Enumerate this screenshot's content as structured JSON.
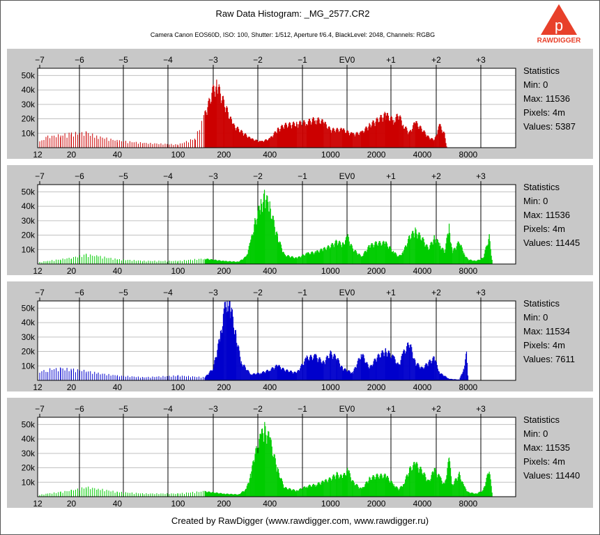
{
  "header": {
    "title": "Raw Data Histogram: _MG_2577.CR2",
    "subtitle": "Camera Canon EOS60D, ISO: 100, Shutter: 1/512, Aperture f/6.4, BlackLevel: 2048, Channels: RGBG"
  },
  "logo": {
    "text": "RAWDIGGER",
    "letter": "p",
    "icon": "rawdigger-logo-icon"
  },
  "footer": {
    "text": "Created by RawDigger (www.rawdigger.com, www.rawdigger.ru)"
  },
  "chart_data": [
    {
      "type": "area",
      "channel": "R",
      "color": "#cc0000",
      "ev_ticks": [
        "−7",
        "−6",
        "−5",
        "−4",
        "−3",
        "−2",
        "−1",
        "EV0",
        "+1",
        "+2",
        "+3"
      ],
      "x_ticks": [
        "12",
        "20",
        "40",
        "100",
        "200",
        "400",
        "1000",
        "2000",
        "4000",
        "8000"
      ],
      "y_ticks": [
        "10k",
        "20k",
        "30k",
        "40k",
        "50k"
      ],
      "ylim": [
        0,
        55000
      ],
      "xscale": "log",
      "points": [
        [
          12,
          3000
        ],
        [
          14,
          7000
        ],
        [
          17,
          8000
        ],
        [
          20,
          9000
        ],
        [
          25,
          9500
        ],
        [
          30,
          7000
        ],
        [
          40,
          4500
        ],
        [
          60,
          3000
        ],
        [
          100,
          2000
        ],
        [
          130,
          6000
        ],
        [
          150,
          22000
        ],
        [
          170,
          38000
        ],
        [
          180,
          42000
        ],
        [
          200,
          30000
        ],
        [
          230,
          15000
        ],
        [
          300,
          6000
        ],
        [
          350,
          4000
        ],
        [
          400,
          6000
        ],
        [
          450,
          12000
        ],
        [
          500,
          15000
        ],
        [
          600,
          16000
        ],
        [
          700,
          17000
        ],
        [
          800,
          19000
        ],
        [
          900,
          17000
        ],
        [
          1000,
          12000
        ],
        [
          1200,
          12000
        ],
        [
          1400,
          9000
        ],
        [
          1600,
          10000
        ],
        [
          1800,
          15000
        ],
        [
          2000,
          18000
        ],
        [
          2300,
          22000
        ],
        [
          2600,
          18000
        ],
        [
          2800,
          22000
        ],
        [
          3000,
          15000
        ],
        [
          3300,
          10000
        ],
        [
          3600,
          17000
        ],
        [
          4000,
          12000
        ],
        [
          4400,
          7000
        ],
        [
          4800,
          5000
        ],
        [
          5200,
          15000
        ],
        [
          5600,
          9000
        ],
        [
          5800,
          0
        ]
      ],
      "stats": {
        "heading": "Statistics",
        "min": "Min: 0",
        "max": "Max: 11536",
        "pixels": "Pixels: 4m",
        "values": "Values: 5387"
      }
    },
    {
      "type": "area",
      "channel": "G",
      "color": "#00cc00",
      "ev_ticks": [
        "−7",
        "−6",
        "−5",
        "−4",
        "−3",
        "−2",
        "−1",
        "EV0",
        "+1",
        "+2",
        "+3"
      ],
      "x_ticks": [
        "12",
        "20",
        "40",
        "100",
        "200",
        "400",
        "1000",
        "2000",
        "4000",
        "8000"
      ],
      "y_ticks": [
        "10k",
        "20k",
        "30k",
        "40k",
        "50k"
      ],
      "ylim": [
        0,
        55000
      ],
      "xscale": "log",
      "points": [
        [
          12,
          1000
        ],
        [
          14,
          2000
        ],
        [
          17,
          3000
        ],
        [
          20,
          4000
        ],
        [
          25,
          6000
        ],
        [
          30,
          5000
        ],
        [
          40,
          3000
        ],
        [
          60,
          2000
        ],
        [
          100,
          2000
        ],
        [
          150,
          3500
        ],
        [
          200,
          2000
        ],
        [
          250,
          1500
        ],
        [
          280,
          5000
        ],
        [
          300,
          15000
        ],
        [
          320,
          28000
        ],
        [
          350,
          40000
        ],
        [
          370,
          45000
        ],
        [
          400,
          38000
        ],
        [
          450,
          18000
        ],
        [
          500,
          6000
        ],
        [
          600,
          4000
        ],
        [
          700,
          7000
        ],
        [
          800,
          8000
        ],
        [
          900,
          10000
        ],
        [
          1000,
          12000
        ],
        [
          1100,
          15000
        ],
        [
          1200,
          13000
        ],
        [
          1300,
          18000
        ],
        [
          1400,
          10000
        ],
        [
          1600,
          5000
        ],
        [
          1800,
          12000
        ],
        [
          2000,
          14000
        ],
        [
          2300,
          14000
        ],
        [
          2600,
          8000
        ],
        [
          2800,
          5000
        ],
        [
          3000,
          8000
        ],
        [
          3300,
          18000
        ],
        [
          3600,
          22000
        ],
        [
          4000,
          17000
        ],
        [
          4400,
          10000
        ],
        [
          4800,
          18000
        ],
        [
          5200,
          13000
        ],
        [
          5600,
          8000
        ],
        [
          6000,
          25000
        ],
        [
          6300,
          8000
        ],
        [
          7000,
          15000
        ],
        [
          7500,
          7000
        ],
        [
          8000,
          3000
        ],
        [
          9000,
          2000
        ],
        [
          10000,
          4000
        ],
        [
          11000,
          18000
        ],
        [
          11500,
          2000
        ]
      ],
      "stats": {
        "heading": "Statistics",
        "min": "Min: 0",
        "max": "Max: 11536",
        "pixels": "Pixels: 4m",
        "values": "Values: 11445"
      }
    },
    {
      "type": "area",
      "channel": "B",
      "color": "#0000cc",
      "ev_ticks": [
        "−7",
        "−6",
        "−5",
        "−4",
        "−3",
        "−2",
        "−1",
        "EV0",
        "+1",
        "+2",
        "+3"
      ],
      "x_ticks": [
        "12",
        "20",
        "40",
        "100",
        "200",
        "400",
        "1000",
        "2000",
        "4000",
        "8000"
      ],
      "y_ticks": [
        "10k",
        "20k",
        "30k",
        "40k",
        "50k"
      ],
      "ylim": [
        0,
        55000
      ],
      "xscale": "log",
      "points": [
        [
          12,
          5000
        ],
        [
          14,
          7000
        ],
        [
          17,
          7500
        ],
        [
          20,
          7000
        ],
        [
          25,
          6000
        ],
        [
          30,
          4500
        ],
        [
          40,
          3000
        ],
        [
          60,
          2000
        ],
        [
          100,
          3000
        ],
        [
          150,
          2000
        ],
        [
          170,
          8000
        ],
        [
          190,
          30000
        ],
        [
          200,
          45000
        ],
        [
          210,
          55000
        ],
        [
          220,
          50000
        ],
        [
          240,
          30000
        ],
        [
          260,
          12000
        ],
        [
          300,
          4000
        ],
        [
          350,
          5000
        ],
        [
          400,
          7000
        ],
        [
          450,
          10000
        ],
        [
          500,
          7000
        ],
        [
          600,
          5000
        ],
        [
          700,
          15000
        ],
        [
          800,
          16000
        ],
        [
          900,
          12000
        ],
        [
          1000,
          18000
        ],
        [
          1100,
          15000
        ],
        [
          1200,
          8000
        ],
        [
          1400,
          5000
        ],
        [
          1600,
          18000
        ],
        [
          1800,
          8000
        ],
        [
          2000,
          15000
        ],
        [
          2300,
          20000
        ],
        [
          2600,
          15000
        ],
        [
          2800,
          10000
        ],
        [
          3000,
          18000
        ],
        [
          3300,
          25000
        ],
        [
          3600,
          12000
        ],
        [
          4000,
          8000
        ],
        [
          4400,
          12000
        ],
        [
          4800,
          15000
        ],
        [
          5200,
          5000
        ],
        [
          5600,
          3000
        ],
        [
          6000,
          1000
        ],
        [
          7000,
          500
        ],
        [
          7500,
          8000
        ],
        [
          7800,
          18000
        ],
        [
          8000,
          0
        ]
      ],
      "stats": {
        "heading": "Statistics",
        "min": "Min: 0",
        "max": "Max: 11534",
        "pixels": "Pixels: 4m",
        "values": "Values: 7611"
      }
    },
    {
      "type": "area",
      "channel": "G2",
      "color": "#00cc00",
      "ev_ticks": [
        "−7",
        "−6",
        "−5",
        "−4",
        "−3",
        "−2",
        "−1",
        "EV0",
        "+1",
        "+2",
        "+3"
      ],
      "x_ticks": [
        "12",
        "20",
        "40",
        "100",
        "200",
        "400",
        "1000",
        "2000",
        "4000",
        "8000"
      ],
      "y_ticks": [
        "10k",
        "20k",
        "30k",
        "40k",
        "50k"
      ],
      "ylim": [
        0,
        55000
      ],
      "xscale": "log",
      "points": [
        [
          12,
          1000
        ],
        [
          14,
          2000
        ],
        [
          17,
          3000
        ],
        [
          20,
          4000
        ],
        [
          25,
          6000
        ],
        [
          30,
          5000
        ],
        [
          40,
          3000
        ],
        [
          60,
          2000
        ],
        [
          100,
          2000
        ],
        [
          150,
          3500
        ],
        [
          200,
          2000
        ],
        [
          250,
          1500
        ],
        [
          280,
          5000
        ],
        [
          300,
          15000
        ],
        [
          320,
          28000
        ],
        [
          350,
          40000
        ],
        [
          370,
          45000
        ],
        [
          400,
          38000
        ],
        [
          450,
          18000
        ],
        [
          500,
          6000
        ],
        [
          600,
          4000
        ],
        [
          700,
          7000
        ],
        [
          800,
          8000
        ],
        [
          900,
          10000
        ],
        [
          1000,
          12000
        ],
        [
          1100,
          15000
        ],
        [
          1200,
          13000
        ],
        [
          1300,
          18000
        ],
        [
          1400,
          10000
        ],
        [
          1600,
          5000
        ],
        [
          1800,
          12000
        ],
        [
          2000,
          14000
        ],
        [
          2300,
          14000
        ],
        [
          2600,
          8000
        ],
        [
          2800,
          5000
        ],
        [
          3000,
          8000
        ],
        [
          3300,
          18000
        ],
        [
          3600,
          22000
        ],
        [
          4000,
          17000
        ],
        [
          4400,
          10000
        ],
        [
          4800,
          18000
        ],
        [
          5200,
          13000
        ],
        [
          5600,
          8000
        ],
        [
          6000,
          25000
        ],
        [
          6300,
          8000
        ],
        [
          7000,
          15000
        ],
        [
          7500,
          7000
        ],
        [
          8000,
          3000
        ],
        [
          9000,
          2000
        ],
        [
          10000,
          4000
        ],
        [
          11000,
          18000
        ],
        [
          11500,
          2000
        ]
      ],
      "stats": {
        "heading": "Statistics",
        "min": "Min: 0",
        "max": "Max: 11535",
        "pixels": "Pixels: 4m",
        "values": "Values: 11440"
      }
    }
  ]
}
